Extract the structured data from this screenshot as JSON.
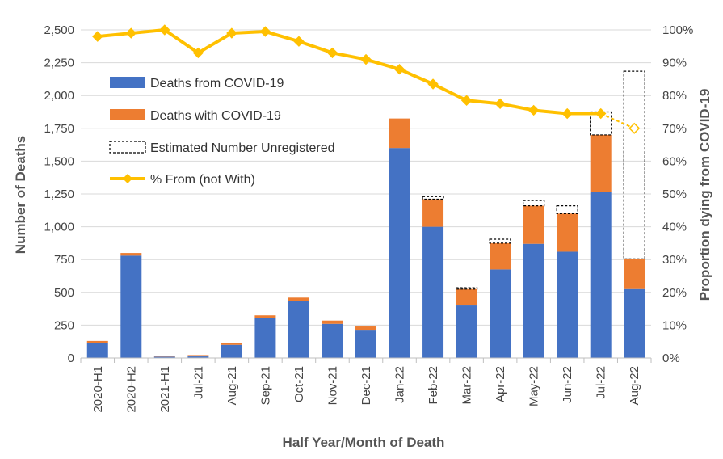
{
  "chart_data": {
    "type": "bar",
    "stacked": true,
    "categories": [
      "2020-H1",
      "2020-H2",
      "2021-H1",
      "Jul-21",
      "Aug-21",
      "Sep-21",
      "Oct-21",
      "Nov-21",
      "Dec-21",
      "Jan-22",
      "Feb-22",
      "Mar-22",
      "Apr-22",
      "May-22",
      "Jun-22",
      "Jul-22",
      "Aug-22"
    ],
    "series": [
      {
        "name": "Deaths from COVID-19",
        "kind": "bar",
        "color": "#4472c4",
        "values": [
          115,
          780,
          10,
          12,
          100,
          305,
          435,
          260,
          215,
          1600,
          1000,
          400,
          675,
          870,
          810,
          1265,
          525
        ]
      },
      {
        "name": "Deaths with COVID-19",
        "kind": "bar",
        "color": "#ed7d31",
        "values": [
          15,
          20,
          2,
          10,
          15,
          20,
          25,
          25,
          25,
          225,
          210,
          125,
          200,
          290,
          290,
          435,
          230
        ]
      },
      {
        "name": "Estimated Number Unregistered",
        "kind": "bar-dashed",
        "color": "#000000",
        "values": [
          0,
          0,
          0,
          0,
          0,
          0,
          0,
          0,
          0,
          0,
          20,
          10,
          30,
          40,
          60,
          175,
          1430
        ]
      },
      {
        "name": "% From (not With)",
        "kind": "line",
        "axis": "right",
        "color": "#ffc000",
        "values": [
          98,
          99,
          100,
          93,
          99,
          99.5,
          96.5,
          93,
          91,
          88,
          83.5,
          78.5,
          77.5,
          75.5,
          74.5,
          74.5,
          70
        ],
        "last_point_hollow": true
      }
    ],
    "title": "",
    "xlabel": "Half Year/Month of Death",
    "ylabel": "Number of Deaths",
    "y2label": "Proportion dying from COVID-19",
    "ylim": [
      0,
      2500
    ],
    "y2lim": [
      0,
      100
    ],
    "yticks": [
      "0",
      "250",
      "500",
      "750",
      "1,000",
      "1,250",
      "1,500",
      "1,750",
      "2,000",
      "2,250",
      "2,500"
    ],
    "y2ticks": [
      "0%",
      "10%",
      "20%",
      "30%",
      "40%",
      "50%",
      "60%",
      "70%",
      "80%",
      "90%",
      "100%"
    ],
    "grid": true,
    "legend_position": "top-left"
  }
}
